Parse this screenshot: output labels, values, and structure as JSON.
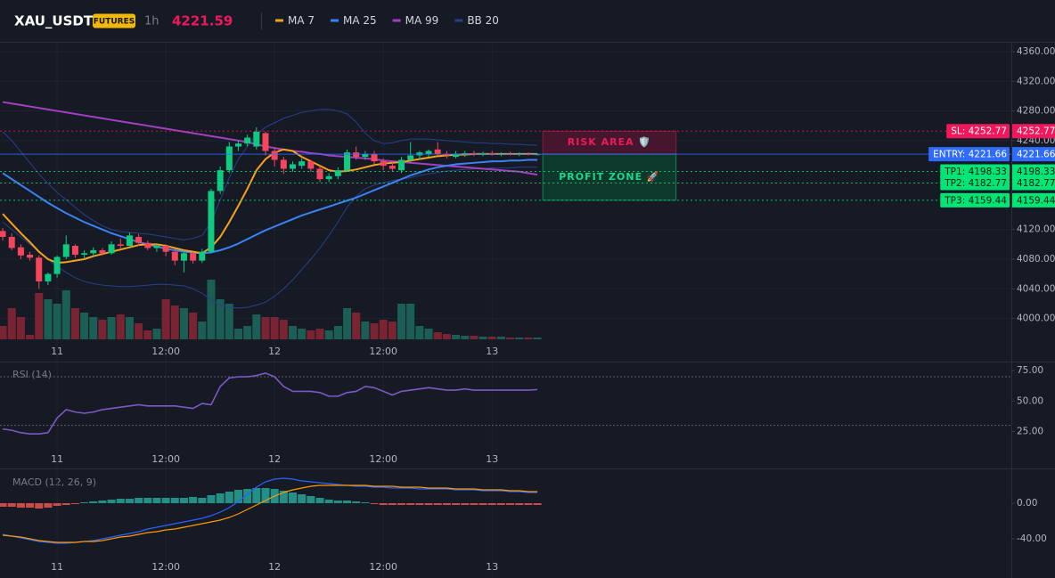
{
  "chart_data": [
    {
      "type": "candlestick",
      "title": "XAU_USDT",
      "badge": "FUTURES",
      "interval": "1h",
      "last_price": 4221.59,
      "up_color": "#0ecb81",
      "down_color": "#f6465d",
      "volume_up_color": "#1b5e55",
      "volume_down_color": "#7a2433",
      "xlim": [
        -0.3,
        111.3
      ],
      "xticks": [
        {
          "value": 6,
          "label": "11"
        },
        {
          "value": 18,
          "label": "12:00"
        },
        {
          "value": 30,
          "label": "12"
        },
        {
          "value": 42,
          "label": "12:00"
        },
        {
          "value": 54,
          "label": "13"
        }
      ],
      "ylim": [
        3943,
        4372
      ],
      "yticks": [
        {
          "value": 4360,
          "label": "4360.00"
        },
        {
          "value": 4320,
          "label": "4320.00"
        },
        {
          "value": 4280,
          "label": "4280.00"
        },
        {
          "value": 4240,
          "label": "4240.00"
        },
        {
          "value": 4120,
          "label": "4120.00"
        },
        {
          "value": 4080,
          "label": "4080.00"
        },
        {
          "value": 4040,
          "label": "4040.00"
        },
        {
          "value": 4000,
          "label": "4000.00"
        }
      ],
      "grid": true,
      "open": [
        4118,
        4110,
        4096,
        4086,
        4082,
        4050,
        4060,
        4083,
        4098,
        4086,
        4088,
        4092,
        4088,
        4100,
        4098,
        4110,
        4102,
        4095,
        4098,
        4090,
        4078,
        4088,
        4078,
        4090,
        4172,
        4200,
        4232,
        4236,
        4232,
        4250,
        4226,
        4214,
        4202,
        4206,
        4212,
        4202,
        4188,
        4192,
        4200,
        4224,
        4218,
        4222,
        4212,
        4206,
        4200,
        4214,
        4220,
        4222,
        4228,
        4222,
        4218,
        4222,
        4223,
        4222,
        4223,
        4221,
        4222,
        4221,
        4222,
        4221
      ],
      "high": [
        4122,
        4115,
        4100,
        4090,
        4085,
        4062,
        4085,
        4112,
        4100,
        4092,
        4096,
        4095,
        4104,
        4108,
        4116,
        4114,
        4105,
        4100,
        4100,
        4094,
        4092,
        4090,
        4094,
        4175,
        4205,
        4238,
        4240,
        4248,
        4258,
        4252,
        4230,
        4218,
        4212,
        4216,
        4214,
        4206,
        4196,
        4204,
        4228,
        4232,
        4226,
        4226,
        4216,
        4212,
        4218,
        4238,
        4226,
        4228,
        4238,
        4226,
        4226,
        4226,
        4226,
        4225,
        4226,
        4224,
        4225,
        4224,
        4224,
        4223
      ],
      "low": [
        4105,
        4092,
        4080,
        4078,
        4040,
        4045,
        4055,
        4080,
        4082,
        4080,
        4084,
        4085,
        4086,
        4095,
        4096,
        4098,
        4092,
        4090,
        4084,
        4072,
        4062,
        4074,
        4075,
        4088,
        4168,
        4196,
        4226,
        4232,
        4228,
        4220,
        4205,
        4195,
        4198,
        4202,
        4198,
        4184,
        4184,
        4188,
        4198,
        4214,
        4214,
        4208,
        4200,
        4198,
        4196,
        4210,
        4214,
        4218,
        4220,
        4216,
        4216,
        4218,
        4219,
        4219,
        4220,
        4219,
        4220,
        4219,
        4220,
        4220
      ],
      "close": [
        4110,
        4095,
        4085,
        4082,
        4050,
        4060,
        4083,
        4100,
        4086,
        4088,
        4092,
        4088,
        4100,
        4098,
        4112,
        4102,
        4095,
        4098,
        4090,
        4078,
        4088,
        4078,
        4090,
        4172,
        4200,
        4232,
        4236,
        4244,
        4252,
        4226,
        4214,
        4202,
        4208,
        4212,
        4202,
        4188,
        4192,
        4200,
        4224,
        4218,
        4222,
        4212,
        4206,
        4202,
        4214,
        4220,
        4224,
        4226,
        4222,
        4220,
        4222,
        4223,
        4222,
        4223,
        4221,
        4222,
        4221,
        4222,
        4221,
        4221.59
      ],
      "volume": [
        15,
        35,
        25,
        5,
        52,
        45,
        40,
        55,
        35,
        30,
        25,
        22,
        25,
        28,
        25,
        18,
        10,
        12,
        45,
        38,
        35,
        30,
        20,
        67,
        45,
        40,
        12,
        15,
        28,
        25,
        25,
        22,
        15,
        12,
        10,
        12,
        10,
        15,
        35,
        30,
        20,
        18,
        22,
        20,
        40,
        40,
        15,
        12,
        8,
        6,
        5,
        4,
        4,
        3,
        3,
        3,
        2,
        2,
        2,
        2
      ],
      "volume_lim": [
        0,
        333
      ],
      "overlays": [
        {
          "name": "MA 7",
          "color": "#f7a21b",
          "values": [
            4141,
            4128,
            4115,
            4103,
            4090,
            4080,
            4075,
            4076,
            4078,
            4080,
            4084,
            4087,
            4090,
            4093,
            4096,
            4099,
            4100,
            4100,
            4098,
            4095,
            4092,
            4090,
            4088,
            4096,
            4110,
            4130,
            4152,
            4175,
            4200,
            4215,
            4224,
            4228,
            4226,
            4218,
            4212,
            4206,
            4200,
            4198,
            4199,
            4201,
            4204,
            4207,
            4209,
            4210,
            4211,
            4213,
            4215,
            4217,
            4219,
            4220,
            4221,
            4221,
            4222,
            4222,
            4222,
            4222,
            4222,
            4222,
            4222,
            4222
          ]
        },
        {
          "name": "MA 25",
          "color": "#3b82f6",
          "values": [
            4196,
            4188,
            4180,
            4172,
            4164,
            4156,
            4149,
            4142,
            4136,
            4130,
            4125,
            4120,
            4115,
            4111,
            4107,
            4103,
            4100,
            4097,
            4094,
            4092,
            4090,
            4089,
            4088,
            4089,
            4092,
            4096,
            4101,
            4107,
            4113,
            4119,
            4124,
            4129,
            4134,
            4139,
            4143,
            4147,
            4151,
            4155,
            4159,
            4163,
            4168,
            4173,
            4178,
            4183,
            4188,
            4193,
            4197,
            4201,
            4204,
            4206,
            4208,
            4209,
            4210,
            4211,
            4212,
            4212,
            4213,
            4213,
            4214,
            4214
          ]
        },
        {
          "name": "MA 99",
          "color": "#a43fc2",
          "values": [
            4292,
            4290,
            4288,
            4286,
            4284,
            4282,
            4280,
            4278,
            4276,
            4274,
            4272,
            4270,
            4268,
            4266,
            4264,
            4262,
            4260,
            4258,
            4256,
            4254,
            4252,
            4250,
            4248,
            4246,
            4244,
            4242,
            4240,
            4238,
            4235,
            4232,
            4230,
            4228,
            4226,
            4225,
            4223,
            4222,
            4220,
            4219,
            4218,
            4217,
            4216,
            4215,
            4213,
            4212,
            4211,
            4210,
            4209,
            4208,
            4207,
            4206,
            4205,
            4204,
            4203,
            4202,
            4201,
            4200,
            4199,
            4198,
            4196,
            4194
          ]
        },
        {
          "name": "BB 20",
          "color": "#2a3f8c",
          "upper": [
            4252,
            4240,
            4225,
            4210,
            4195,
            4182,
            4170,
            4160,
            4150,
            4140,
            4132,
            4125,
            4120,
            4117,
            4116,
            4115,
            4114,
            4112,
            4110,
            4108,
            4106,
            4108,
            4112,
            4130,
            4160,
            4190,
            4215,
            4232,
            4248,
            4258,
            4264,
            4270,
            4274,
            4278,
            4280,
            4282,
            4282,
            4280,
            4276,
            4265,
            4250,
            4240,
            4236,
            4237,
            4240,
            4242,
            4242,
            4242,
            4241,
            4240,
            4239,
            4238,
            4237,
            4237,
            4236,
            4236,
            4235,
            4235,
            4234,
            4234
          ],
          "lower": [
            4130,
            4120,
            4110,
            4100,
            4090,
            4080,
            4070,
            4062,
            4055,
            4050,
            4047,
            4045,
            4044,
            4043,
            4043,
            4044,
            4045,
            4046,
            4046,
            4045,
            4044,
            4040,
            4034,
            4025,
            4018,
            4015,
            4014,
            4015,
            4018,
            4022,
            4030,
            4040,
            4052,
            4066,
            4080,
            4095,
            4112,
            4130,
            4150,
            4165,
            4175,
            4180,
            4183,
            4186,
            4188,
            4190,
            4193,
            4195,
            4197,
            4199,
            4200,
            4201,
            4202,
            4202,
            4203,
            4203,
            4203,
            4204,
            4204,
            4204
          ]
        }
      ],
      "levels": [
        {
          "label": "SL: 4252.77",
          "value": 4252.77,
          "color": "#f0185a",
          "text_color": "#ffffff",
          "style": "dotted"
        },
        {
          "label": "ENTRY: 4221.66",
          "value": 4221.66,
          "color": "#2f6bff",
          "text_color": "#ffffff",
          "style": "solid"
        },
        {
          "label": "TP1: 4198.33",
          "value": 4198.33,
          "color": "#00e676",
          "text_color": "#0b1a12",
          "style": "dotted"
        },
        {
          "label": "TP2: 4182.77",
          "value": 4182.77,
          "color": "#00e676",
          "text_color": "#0b1a12",
          "style": "dotted"
        },
        {
          "label": "TP3: 4159.44",
          "value": 4159.44,
          "color": "#00e676",
          "text_color": "#0b1a12",
          "style": "dotted"
        }
      ],
      "zones": [
        {
          "label": "RISK AREA 🛡️",
          "range": [
            4252.77,
            4221.66
          ],
          "color": "#4a1630",
          "text_color": "#f0185a"
        },
        {
          "label": "PROFIT ZONE 🚀",
          "range": [
            4221.66,
            4159.44
          ],
          "color": "#0b3d2e",
          "text_color": "#1fd68a"
        }
      ]
    },
    {
      "type": "line",
      "title": "RSI (14)",
      "color": "#7e57c2",
      "values": [
        27,
        26,
        24,
        23,
        23,
        24,
        36,
        43,
        41,
        40,
        41,
        43,
        44,
        45,
        46,
        47,
        46,
        46,
        46,
        46,
        45,
        44,
        48,
        47,
        62,
        69,
        70,
        70,
        71,
        73,
        70,
        62,
        58,
        58,
        58,
        57,
        54,
        54,
        57,
        58,
        62,
        61,
        58,
        55,
        58,
        59,
        60,
        61,
        60,
        59,
        59,
        60,
        59,
        59,
        59,
        59,
        59,
        59,
        59,
        59.5
      ],
      "ylim": [
        -1,
        81
      ],
      "yticks": [
        {
          "value": 75,
          "label": "75.00"
        },
        {
          "value": 50,
          "label": "50.00"
        },
        {
          "value": 25,
          "label": "25.00"
        }
      ],
      "levels": [
        70,
        30
      ]
    },
    {
      "type": "macd",
      "title": "MACD (12, 26, 9)",
      "histogram": [
        -4,
        -4,
        -5,
        -5,
        -6,
        -5,
        -3,
        -2,
        -1,
        1,
        2,
        3,
        4,
        5,
        5,
        6,
        6,
        6,
        6,
        6,
        6,
        7,
        6,
        9,
        11,
        13,
        15,
        16,
        17,
        17,
        16,
        14,
        12,
        10,
        8,
        6,
        4,
        3,
        3,
        2,
        1,
        -1,
        -2,
        -2,
        -2,
        -2,
        -2,
        -2,
        -2,
        -2,
        -2,
        -2,
        -2,
        -2,
        -2,
        -2,
        -2,
        -2,
        -2,
        -2
      ],
      "positive_color": "#26a69a",
      "negative_color": "#ef5350",
      "series": [
        {
          "color": "#2962ff",
          "values": [
            -35,
            -37,
            -39,
            -41,
            -43,
            -44,
            -45,
            -45,
            -44,
            -43,
            -42,
            -40,
            -38,
            -36,
            -34,
            -32,
            -29,
            -27,
            -25,
            -23,
            -21,
            -19,
            -17,
            -14,
            -10,
            -5,
            2,
            10,
            18,
            24,
            27,
            28,
            27,
            25,
            24,
            23,
            22,
            21,
            20,
            19,
            19,
            18,
            18,
            17,
            17,
            17,
            16,
            16,
            16,
            16,
            15,
            15,
            15,
            14,
            14,
            14,
            13,
            13,
            12,
            12
          ]
        },
        {
          "color": "#ff9800",
          "values": [
            -36,
            -37,
            -38,
            -40,
            -42,
            -43,
            -44,
            -44,
            -44,
            -43,
            -43,
            -42,
            -40,
            -38,
            -37,
            -35,
            -33,
            -32,
            -30,
            -29,
            -27,
            -25,
            -23,
            -21,
            -19,
            -16,
            -12,
            -7,
            -2,
            3,
            8,
            12,
            15,
            17,
            19,
            20,
            20,
            20,
            20,
            20,
            20,
            19,
            19,
            19,
            18,
            18,
            18,
            17,
            17,
            17,
            16,
            16,
            16,
            15,
            15,
            15,
            14,
            14,
            13,
            13
          ]
        }
      ],
      "ylim": [
        -80,
        37
      ],
      "yticks": [
        {
          "value": 0,
          "label": "0.00"
        },
        {
          "value": -40,
          "label": "-40.00"
        }
      ]
    }
  ]
}
